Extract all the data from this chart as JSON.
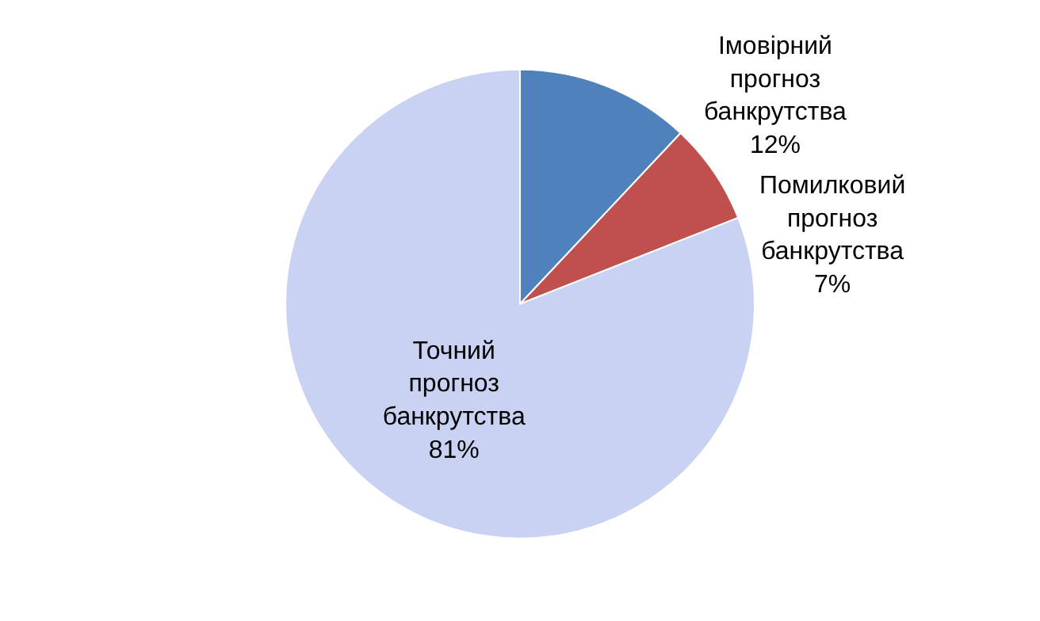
{
  "chart_data": {
    "type": "pie",
    "categories": [
      "Імовірний прогноз банкрутства",
      "Помилковий прогноз банкрутства",
      "Точний прогноз банкрутства"
    ],
    "values": [
      12,
      7,
      81
    ],
    "colors": [
      "#4f81bd",
      "#c0504d",
      "#c9d2f2"
    ],
    "value_labels": [
      "12%",
      "7%",
      "81%"
    ],
    "legend": false
  }
}
